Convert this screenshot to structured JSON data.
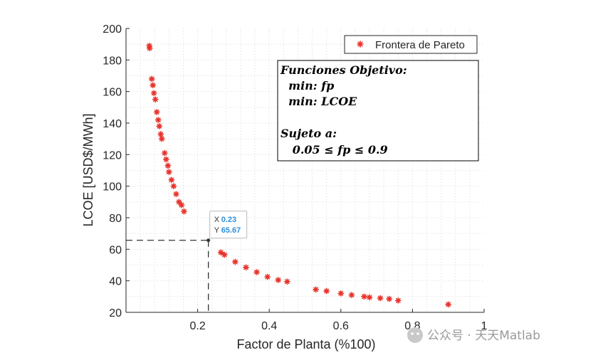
{
  "chart_data": {
    "type": "scatter",
    "xlabel": "Factor de Planta (%100)",
    "ylabel": "LCOE [USD$/MWh]",
    "xlim": [
      0,
      1
    ],
    "ylim": [
      20,
      200
    ],
    "x_ticks": [
      0.2,
      0.4,
      0.6,
      0.8,
      1
    ],
    "y_ticks": [
      20,
      40,
      60,
      80,
      100,
      120,
      140,
      160,
      180,
      200
    ],
    "grid": "dotted",
    "legend_placement": "top-right",
    "series": [
      {
        "name": "Frontera de Pareto",
        "color": "#e8322b",
        "marker": "asterisk",
        "points": [
          [
            0.065,
            189
          ],
          [
            0.066,
            187.5
          ],
          [
            0.072,
            168
          ],
          [
            0.075,
            164
          ],
          [
            0.078,
            159
          ],
          [
            0.082,
            155
          ],
          [
            0.086,
            147
          ],
          [
            0.09,
            142
          ],
          [
            0.093,
            138
          ],
          [
            0.097,
            133
          ],
          [
            0.1,
            130
          ],
          [
            0.108,
            121
          ],
          [
            0.112,
            117
          ],
          [
            0.117,
            113
          ],
          [
            0.12,
            109
          ],
          [
            0.127,
            104
          ],
          [
            0.133,
            100
          ],
          [
            0.14,
            95
          ],
          [
            0.148,
            90
          ],
          [
            0.155,
            88
          ],
          [
            0.162,
            84
          ],
          [
            0.265,
            58
          ],
          [
            0.275,
            56.5
          ],
          [
            0.305,
            52
          ],
          [
            0.335,
            48.5
          ],
          [
            0.365,
            45.5
          ],
          [
            0.395,
            42.5
          ],
          [
            0.425,
            40.5
          ],
          [
            0.45,
            39.5
          ],
          [
            0.53,
            34.5
          ],
          [
            0.56,
            33.5
          ],
          [
            0.6,
            32
          ],
          [
            0.63,
            31
          ],
          [
            0.665,
            30
          ],
          [
            0.68,
            29.5
          ],
          [
            0.71,
            29
          ],
          [
            0.735,
            28.5
          ],
          [
            0.76,
            27.5
          ],
          [
            0.9,
            25
          ]
        ]
      }
    ],
    "annotation_lines": {
      "x": 0.23,
      "y": 65.67
    },
    "datatip": {
      "x_label": "X",
      "x_value": "0.23",
      "y_label": "Y",
      "y_value": "65.67"
    }
  },
  "note_box": {
    "lines": [
      "Funciones Objetivo:",
      "  min: fp",
      "  min: LCOE",
      "",
      "Sujeto a:",
      "   0.05 ≤ fp ≤ 0.9"
    ]
  },
  "watermark": "公众号 · 天天Matlab",
  "colors": {
    "marker": "#e8322b",
    "tip_value": "#2e8fd9",
    "axis": "#262626"
  }
}
